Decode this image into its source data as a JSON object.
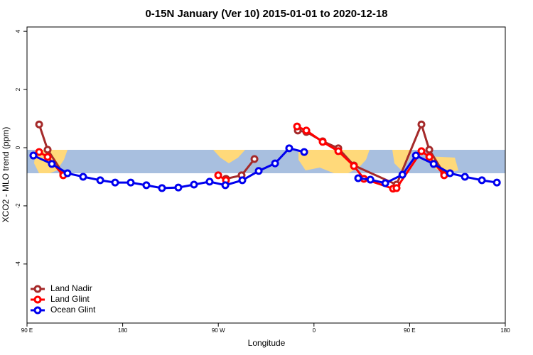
{
  "chart_data": {
    "type": "line",
    "title": "0-15N January (Ver 10)   2015-01-01 to 2020-12-18",
    "x_label": "Longitude",
    "y_label": "XCO2 - MLO trend (ppm)",
    "xlim": [
      90,
      540
    ],
    "ylim": [
      -6.03,
      4.15
    ],
    "xticks": [
      {
        "value": 90,
        "label": "90 E"
      },
      180,
      {
        "value": 270,
        "label": "90 W"
      },
      {
        "value": 360,
        "label": "0"
      },
      {
        "value": 450,
        "label": "90 E"
      },
      {
        "value": 540,
        "label": "180"
      }
    ],
    "yticks": [
      -4,
      -2,
      0,
      2,
      4
    ],
    "legend": "bottom-left",
    "series": [
      {
        "name": "Land Nadir",
        "color": "#a52a2a",
        "x": [
          101.4,
          109.4,
          124.1,
          null,
          277.2,
          291.9,
          304,
          null,
          344.8,
          352.8,
          368.2,
          382.9,
          397.6,
          437.7,
          461.1,
          468.5,
          482.5
        ],
        "values": [
          0.8,
          -0.07,
          -0.9,
          null,
          -1.07,
          -0.95,
          -0.39,
          null,
          0.59,
          0.54,
          0.22,
          -0.02,
          -0.61,
          -1.27,
          0.8,
          -0.07,
          -0.9
        ]
      },
      {
        "name": "Land Glint",
        "color": "#ff0000",
        "x": [
          101.4,
          109.4,
          124.1,
          null,
          269.9,
          277.2,
          null,
          344.1,
          352.8,
          368.2,
          382.9,
          397.6,
          407,
          434.4,
          437.7,
          461.1,
          468.5,
          482.5
        ],
        "values": [
          -0.15,
          -0.32,
          -0.95,
          null,
          -0.95,
          -1.12,
          null,
          0.73,
          0.59,
          0.2,
          -0.12,
          -0.63,
          -1.07,
          -1.41,
          -1.39,
          -0.12,
          -0.32,
          -0.95
        ]
      },
      {
        "name": "Ocean Glint",
        "color": "#0000ee",
        "x": [
          96,
          113.4,
          128.1,
          142.8,
          158.9,
          172.9,
          187.6,
          202.3,
          217,
          232.4,
          247.1,
          261.8,
          276.6,
          292.6,
          308,
          323.4,
          336.7,
          350.8,
          null,
          401.6,
          413.1,
          427.1,
          443.2,
          455.9,
          472.6,
          488,
          502,
          518,
          532.1
        ],
        "values": [
          -0.27,
          -0.56,
          -0.88,
          -1.0,
          -1.12,
          -1.2,
          -1.2,
          -1.29,
          -1.39,
          -1.37,
          -1.27,
          -1.17,
          -1.29,
          -1.12,
          -0.8,
          -0.54,
          -0.02,
          -0.15,
          null,
          -1.05,
          -1.1,
          -1.22,
          -0.93,
          -0.27,
          -0.56,
          -0.88,
          -1.0,
          -1.12,
          -1.2
        ]
      }
    ]
  }
}
